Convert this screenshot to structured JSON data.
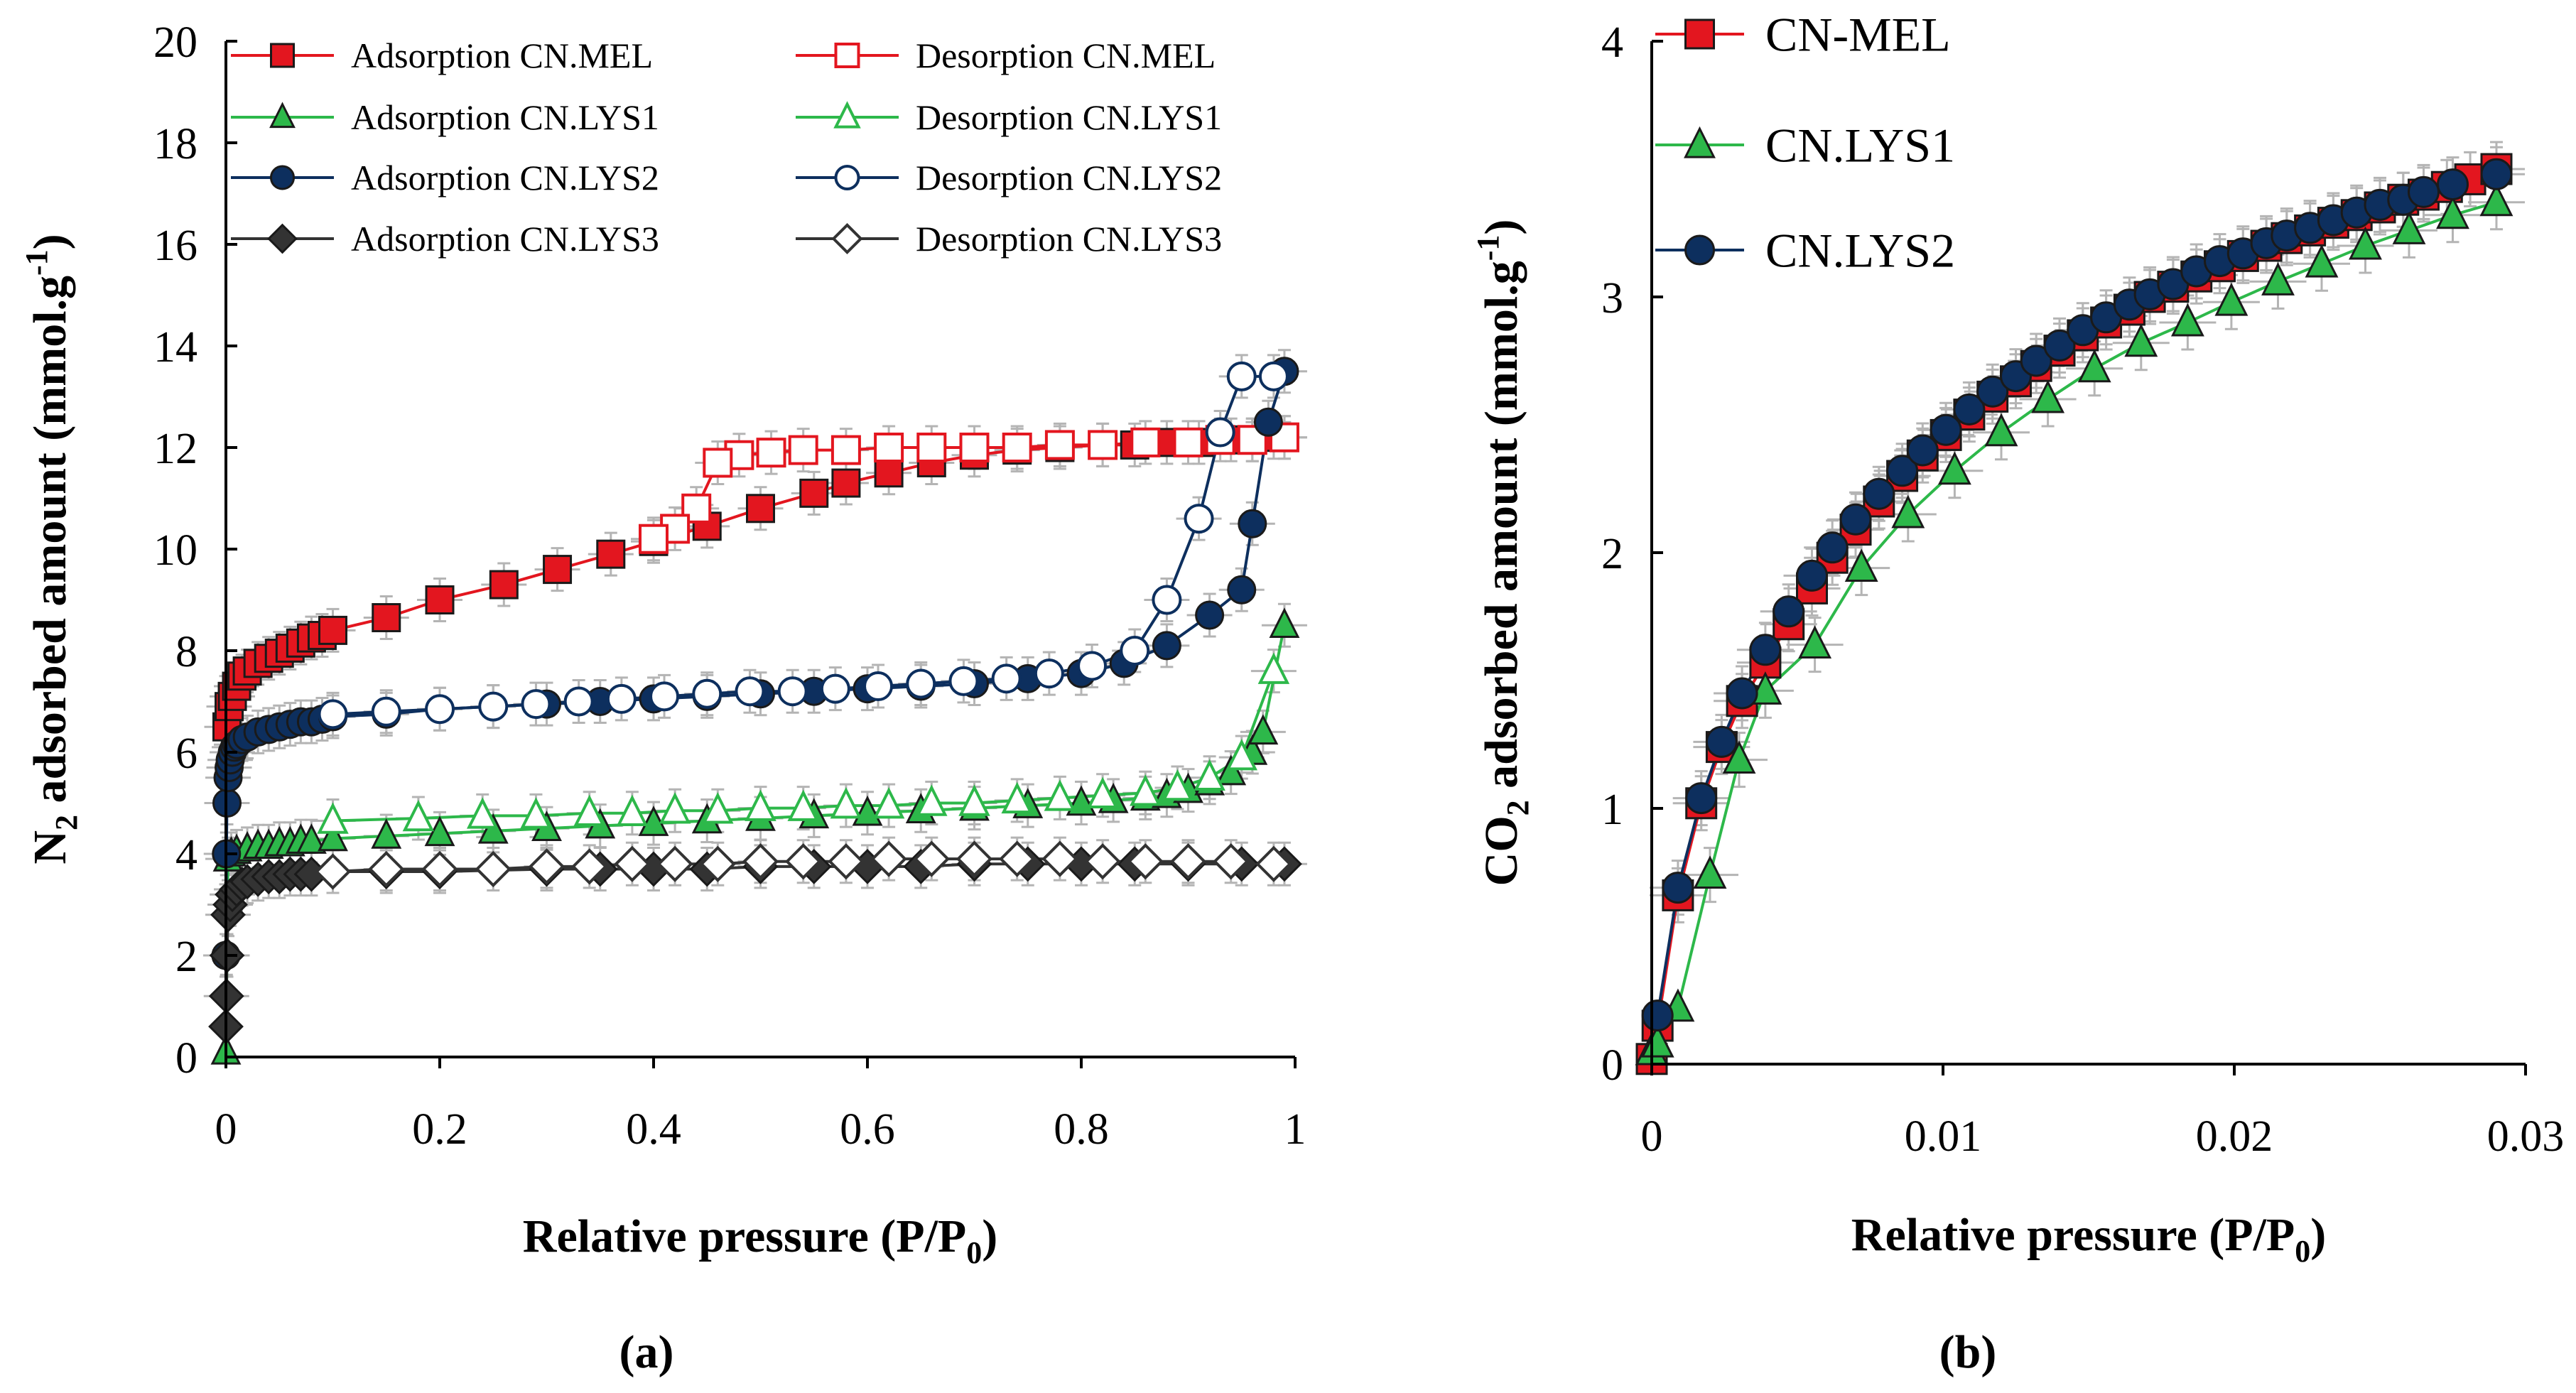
{
  "chart_data": [
    {
      "type": "line",
      "panel_label": "(a)",
      "title": "",
      "xlabel": "Relative pressure (P/P₀)",
      "ylabel": "N₂ adsorbed amount (mmol.g⁻¹)",
      "xlabel_parts": {
        "main": "Relative pressure (P/P",
        "sub": "0",
        "end": ")"
      },
      "ylabel_parts": {
        "pre": "N",
        "sub": "2",
        "mid": " adsorbed amount (mmol.g",
        "sup": "-1",
        "end": ")"
      },
      "xlim": [
        0,
        1
      ],
      "ylim": [
        0,
        20
      ],
      "xticks": [
        "0",
        "0.2",
        "0.4",
        "0.6",
        "0.8",
        "1"
      ],
      "xtick_values": [
        0,
        0.2,
        0.4,
        0.6,
        0.8,
        1
      ],
      "yticks": [
        "0",
        "2",
        "4",
        "6",
        "8",
        "10",
        "12",
        "14",
        "16",
        "18",
        "20"
      ],
      "ytick_values": [
        0,
        2,
        4,
        6,
        8,
        10,
        12,
        14,
        16,
        18,
        20
      ],
      "grid": false,
      "legend_position": "top",
      "series": [
        {
          "name": "Adsorption CN.MEL",
          "color": "#e3161f",
          "marker": "square",
          "filled": true,
          "x": [
            0.001,
            0.003,
            0.006,
            0.01,
            0.015,
            0.02,
            0.03,
            0.04,
            0.05,
            0.06,
            0.07,
            0.08,
            0.09,
            0.1,
            0.15,
            0.2,
            0.26,
            0.31,
            0.36,
            0.4,
            0.45,
            0.5,
            0.55,
            0.58,
            0.62,
            0.66,
            0.7,
            0.74,
            0.78,
            0.82,
            0.85,
            0.88,
            0.91,
            0.94,
            0.96,
            0.98,
            0.99
          ],
          "y": [
            6.5,
            6.9,
            7.1,
            7.3,
            7.5,
            7.6,
            7.75,
            7.85,
            7.95,
            8.05,
            8.15,
            8.25,
            8.3,
            8.4,
            8.65,
            9.0,
            9.3,
            9.6,
            9.9,
            10.15,
            10.45,
            10.8,
            11.1,
            11.3,
            11.5,
            11.7,
            11.85,
            11.95,
            12.0,
            12.05,
            12.05,
            12.1,
            12.1,
            12.15,
            12.15,
            12.2,
            12.2
          ]
        },
        {
          "name": "Desorption CN.MEL",
          "color": "#e3161f",
          "marker": "square",
          "filled": false,
          "x": [
            0.99,
            0.96,
            0.93,
            0.9,
            0.86,
            0.82,
            0.78,
            0.74,
            0.7,
            0.66,
            0.62,
            0.58,
            0.54,
            0.51,
            0.48,
            0.46,
            0.44,
            0.42,
            0.4
          ],
          "y": [
            12.2,
            12.15,
            12.15,
            12.1,
            12.1,
            12.05,
            12.05,
            12.0,
            12.0,
            12.0,
            12.0,
            11.95,
            11.95,
            11.9,
            11.85,
            11.7,
            10.8,
            10.4,
            10.2
          ]
        },
        {
          "name": "Adsorption CN.LYS1",
          "color": "#2db84a",
          "marker": "triangle",
          "filled": true,
          "x": [
            0.0,
            0.002,
            0.005,
            0.01,
            0.02,
            0.03,
            0.04,
            0.05,
            0.06,
            0.07,
            0.08,
            0.1,
            0.15,
            0.2,
            0.25,
            0.3,
            0.35,
            0.4,
            0.45,
            0.5,
            0.55,
            0.6,
            0.65,
            0.7,
            0.75,
            0.8,
            0.83,
            0.86,
            0.88,
            0.9,
            0.92,
            0.94,
            0.96,
            0.97,
            0.99
          ],
          "y": [
            0.1,
            3.9,
            4.0,
            4.05,
            4.1,
            4.15,
            4.15,
            4.2,
            4.2,
            4.25,
            4.25,
            4.3,
            4.35,
            4.4,
            4.45,
            4.5,
            4.55,
            4.6,
            4.65,
            4.7,
            4.75,
            4.8,
            4.85,
            4.9,
            4.95,
            5.0,
            5.05,
            5.1,
            5.15,
            5.25,
            5.4,
            5.6,
            6.0,
            6.4,
            8.5
          ]
        },
        {
          "name": "Desorption CN.LYS1",
          "color": "#2db84a",
          "marker": "triangle",
          "filled": false,
          "x": [
            0.98,
            0.95,
            0.92,
            0.89,
            0.86,
            0.82,
            0.78,
            0.74,
            0.7,
            0.66,
            0.62,
            0.58,
            0.54,
            0.5,
            0.46,
            0.42,
            0.38,
            0.34,
            0.29,
            0.24,
            0.18,
            0.1
          ],
          "y": [
            7.6,
            5.9,
            5.5,
            5.3,
            5.2,
            5.15,
            5.1,
            5.05,
            5.0,
            5.0,
            4.95,
            4.95,
            4.9,
            4.9,
            4.85,
            4.85,
            4.8,
            4.8,
            4.75,
            4.75,
            4.7,
            4.65
          ]
        },
        {
          "name": "Adsorption CN.LYS2",
          "color": "#0d2f5e",
          "marker": "circle",
          "filled": true,
          "x": [
            0.0,
            0.0005,
            0.001,
            0.002,
            0.003,
            0.004,
            0.006,
            0.008,
            0.01,
            0.015,
            0.02,
            0.03,
            0.04,
            0.05,
            0.06,
            0.07,
            0.08,
            0.09,
            0.1,
            0.15,
            0.2,
            0.25,
            0.3,
            0.35,
            0.4,
            0.45,
            0.5,
            0.55,
            0.6,
            0.65,
            0.7,
            0.75,
            0.8,
            0.84,
            0.88,
            0.92,
            0.95,
            0.96,
            0.975,
            0.99
          ],
          "y": [
            2.0,
            4.0,
            5.0,
            5.5,
            5.7,
            5.85,
            6.0,
            6.1,
            6.15,
            6.25,
            6.3,
            6.4,
            6.45,
            6.5,
            6.55,
            6.6,
            6.6,
            6.65,
            6.7,
            6.75,
            6.85,
            6.9,
            6.95,
            7.0,
            7.05,
            7.1,
            7.15,
            7.2,
            7.25,
            7.3,
            7.35,
            7.45,
            7.55,
            7.75,
            8.1,
            8.7,
            9.2,
            10.5,
            12.5,
            13.5
          ]
        },
        {
          "name": "Desorption CN.LYS2",
          "color": "#0d2f5e",
          "marker": "circle",
          "filled": false,
          "x": [
            0.98,
            0.95,
            0.93,
            0.91,
            0.88,
            0.85,
            0.81,
            0.77,
            0.73,
            0.69,
            0.65,
            0.61,
            0.57,
            0.53,
            0.49,
            0.45,
            0.41,
            0.37,
            0.33,
            0.29,
            0.25,
            0.2,
            0.15,
            0.1
          ],
          "y": [
            13.4,
            13.4,
            12.3,
            10.6,
            9.0,
            8.0,
            7.7,
            7.55,
            7.45,
            7.4,
            7.35,
            7.3,
            7.25,
            7.2,
            7.2,
            7.15,
            7.1,
            7.05,
            7.0,
            6.95,
            6.9,
            6.85,
            6.8,
            6.75
          ]
        },
        {
          "name": "Adsorption CN.LYS3",
          "color": "#333333",
          "marker": "diamond",
          "filled": true,
          "x": [
            0.0,
            0.0005,
            0.001,
            0.002,
            0.004,
            0.006,
            0.01,
            0.015,
            0.02,
            0.03,
            0.04,
            0.05,
            0.06,
            0.07,
            0.08,
            0.1,
            0.15,
            0.2,
            0.3,
            0.35,
            0.4,
            0.45,
            0.5,
            0.55,
            0.6,
            0.65,
            0.7,
            0.75,
            0.8,
            0.85,
            0.9,
            0.95,
            0.99
          ],
          "y": [
            0.6,
            1.2,
            2.0,
            2.8,
            3.0,
            3.2,
            3.3,
            3.4,
            3.45,
            3.5,
            3.55,
            3.55,
            3.6,
            3.6,
            3.6,
            3.65,
            3.65,
            3.65,
            3.7,
            3.7,
            3.7,
            3.7,
            3.75,
            3.75,
            3.75,
            3.75,
            3.8,
            3.8,
            3.8,
            3.8,
            3.8,
            3.8,
            3.8
          ]
        },
        {
          "name": "Desorption CN.LYS3",
          "color": "#333333",
          "marker": "diamond",
          "filled": false,
          "x": [
            0.98,
            0.94,
            0.9,
            0.86,
            0.82,
            0.78,
            0.74,
            0.7,
            0.66,
            0.62,
            0.58,
            0.54,
            0.5,
            0.46,
            0.42,
            0.38,
            0.34,
            0.3,
            0.25,
            0.2,
            0.15,
            0.1
          ],
          "y": [
            3.8,
            3.85,
            3.85,
            3.85,
            3.85,
            3.9,
            3.9,
            3.9,
            3.9,
            3.9,
            3.85,
            3.85,
            3.85,
            3.8,
            3.8,
            3.8,
            3.75,
            3.75,
            3.7,
            3.7,
            3.7,
            3.65
          ]
        }
      ]
    },
    {
      "type": "line",
      "panel_label": "(b)",
      "title": "",
      "xlabel": "Relative pressure (P/P₀)",
      "ylabel": "CO₂ adsorbed amount (mmol.g⁻¹)",
      "xlabel_parts": {
        "main": "Relative pressure (P/P",
        "sub": "0",
        "end": ")"
      },
      "ylabel_parts": {
        "pre": "CO",
        "sub": "2",
        "mid": " adsorbed amount (mmol.g",
        "sup": "-1",
        "end": ")"
      },
      "xlim": [
        0,
        0.03
      ],
      "ylim": [
        0,
        4
      ],
      "xticks": [
        "0",
        "0.01",
        "0.02",
        "0.03"
      ],
      "xtick_values": [
        0,
        0.01,
        0.02,
        0.03
      ],
      "yticks": [
        "0",
        "1",
        "2",
        "3",
        "4"
      ],
      "ytick_values": [
        0,
        1,
        2,
        3,
        4
      ],
      "grid": false,
      "legend_position": "top-left",
      "series": [
        {
          "name": "CN-MEL",
          "color": "#e3161f",
          "marker": "square",
          "filled": true,
          "x": [
            0.0,
            0.0002,
            0.0009,
            0.0017,
            0.0024,
            0.0031,
            0.0039,
            0.0047,
            0.0055,
            0.0062,
            0.007,
            0.0078,
            0.0086,
            0.0093,
            0.0101,
            0.0109,
            0.0117,
            0.0125,
            0.0132,
            0.014,
            0.0148,
            0.0156,
            0.0164,
            0.0171,
            0.0179,
            0.0187,
            0.0195,
            0.0203,
            0.0211,
            0.0218,
            0.0226,
            0.0234,
            0.0242,
            0.025,
            0.0258,
            0.0265,
            0.0273,
            0.0281,
            0.029
          ],
          "y": [
            0.02,
            0.15,
            0.66,
            1.02,
            1.24,
            1.42,
            1.57,
            1.72,
            1.86,
            1.98,
            2.09,
            2.2,
            2.3,
            2.38,
            2.46,
            2.54,
            2.61,
            2.67,
            2.73,
            2.79,
            2.85,
            2.9,
            2.95,
            3.0,
            3.04,
            3.08,
            3.12,
            3.16,
            3.2,
            3.23,
            3.26,
            3.29,
            3.32,
            3.35,
            3.38,
            3.4,
            3.43,
            3.46,
            3.5
          ]
        },
        {
          "name": "CN.LYS1",
          "color": "#2db84a",
          "marker": "triangle",
          "filled": true,
          "x": [
            0.0,
            0.0002,
            0.0009,
            0.002,
            0.003,
            0.0039,
            0.0056,
            0.0072,
            0.0088,
            0.0104,
            0.012,
            0.0136,
            0.0152,
            0.0168,
            0.0184,
            0.0199,
            0.0215,
            0.023,
            0.0245,
            0.026,
            0.0275,
            0.029
          ],
          "y": [
            0.05,
            0.08,
            0.22,
            0.74,
            1.19,
            1.46,
            1.64,
            1.94,
            2.15,
            2.32,
            2.47,
            2.6,
            2.72,
            2.82,
            2.9,
            2.98,
            3.06,
            3.13,
            3.2,
            3.26,
            3.32,
            3.37
          ]
        },
        {
          "name": "CN.LYS2",
          "color": "#0d2f5e",
          "marker": "circle",
          "filled": true,
          "x": [
            0.0002,
            0.0009,
            0.0017,
            0.0024,
            0.0031,
            0.0039,
            0.0047,
            0.0055,
            0.0062,
            0.007,
            0.0078,
            0.0086,
            0.0093,
            0.0101,
            0.0109,
            0.0117,
            0.0125,
            0.0132,
            0.014,
            0.0148,
            0.0156,
            0.0164,
            0.0171,
            0.0179,
            0.0187,
            0.0195,
            0.0203,
            0.0211,
            0.0218,
            0.0226,
            0.0234,
            0.0242,
            0.025,
            0.0258,
            0.0265,
            0.0275,
            0.029
          ],
          "y": [
            0.19,
            0.69,
            1.04,
            1.26,
            1.45,
            1.62,
            1.77,
            1.91,
            2.02,
            2.13,
            2.23,
            2.32,
            2.4,
            2.48,
            2.56,
            2.63,
            2.69,
            2.75,
            2.81,
            2.87,
            2.92,
            2.97,
            3.01,
            3.05,
            3.1,
            3.14,
            3.17,
            3.21,
            3.24,
            3.27,
            3.3,
            3.33,
            3.36,
            3.38,
            3.41,
            3.44,
            3.48
          ]
        }
      ]
    }
  ]
}
